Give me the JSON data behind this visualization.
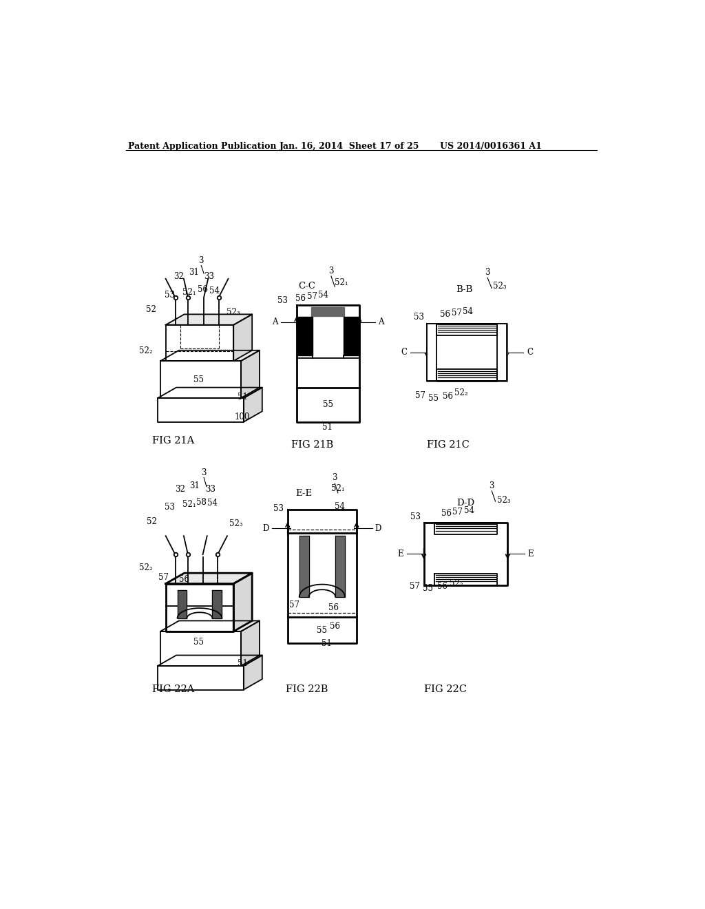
{
  "bg_color": "#ffffff",
  "header_left": "Patent Application Publication",
  "header_mid": "Jan. 16, 2014  Sheet 17 of 25",
  "header_right": "US 2014/0016361 A1",
  "line_color": "#000000",
  "fig_labels": {
    "21A": "FIG 21A",
    "21B": "FIG 21B",
    "21C": "FIG 21C",
    "22A": "FIG 22A",
    "22B": "FIG 22B",
    "22C": "FIG 22C"
  }
}
